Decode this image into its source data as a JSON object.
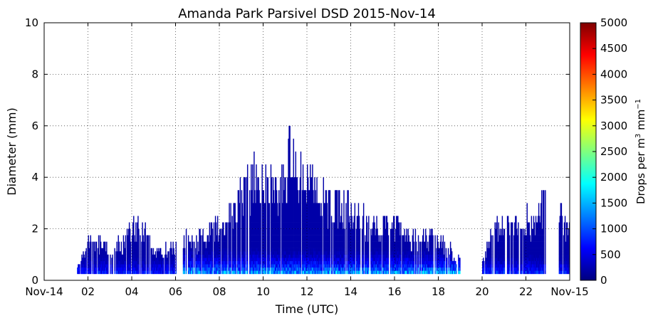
{
  "chart_data": {
    "type": "heatmap",
    "title": "Amanda Park Parsivel DSD 2015-Nov-14",
    "xlabel": "Time (UTC)",
    "ylabel": "Diameter (mm)",
    "x_tick_labels": [
      "Nov-14",
      "02",
      "04",
      "06",
      "08",
      "10",
      "12",
      "14",
      "16",
      "18",
      "20",
      "22",
      "Nov-15"
    ],
    "x_tick_hours": [
      0,
      2,
      4,
      6,
      8,
      10,
      12,
      14,
      16,
      18,
      20,
      22,
      24
    ],
    "xlim_hours": [
      0,
      24
    ],
    "ylim": [
      0,
      10
    ],
    "y_ticks": [
      0,
      2,
      4,
      6,
      8,
      10
    ],
    "grid": true,
    "colorbar": {
      "label": "Drops per m",
      "label_sup": "3",
      "label_unit": " mm",
      "label_unit_sup": "−1",
      "colormap": "jet",
      "range": [
        0,
        5000
      ],
      "ticks": [
        0,
        500,
        1000,
        1500,
        2000,
        2500,
        3000,
        3500,
        4000,
        4500,
        5000
      ]
    },
    "precip_segments": [
      {
        "start_hour": 1.5,
        "end_hour": 6.0,
        "max_diameter_mm": 2.5,
        "peak_count": 900
      },
      {
        "start_hour": 6.3,
        "end_hour": 19.0,
        "max_diameter_mm": 6.1,
        "peak_count": 1700
      },
      {
        "start_hour": 20.0,
        "end_hour": 24.0,
        "max_diameter_mm": 4.1,
        "peak_count": 1000
      }
    ],
    "notes_max_diameter_profile_mm": [
      [
        1.5,
        0.5
      ],
      [
        2.0,
        1.8
      ],
      [
        2.5,
        1.6
      ],
      [
        3.0,
        1.4
      ],
      [
        3.5,
        1.6
      ],
      [
        4.0,
        2.4
      ],
      [
        4.5,
        2.3
      ],
      [
        5.0,
        1.2
      ],
      [
        5.5,
        1.3
      ],
      [
        6.0,
        1.6
      ],
      [
        6.5,
        2.0
      ],
      [
        7.0,
        1.8
      ],
      [
        7.5,
        2.2
      ],
      [
        8.0,
        2.4
      ],
      [
        8.5,
        2.8
      ],
      [
        9.0,
        3.8
      ],
      [
        9.5,
        4.6
      ],
      [
        10.0,
        4.6
      ],
      [
        10.5,
        4.2
      ],
      [
        11.0,
        4.4
      ],
      [
        11.2,
        6.1
      ],
      [
        11.5,
        4.8
      ],
      [
        12.0,
        4.6
      ],
      [
        12.5,
        4.2
      ],
      [
        13.0,
        3.3
      ],
      [
        13.5,
        3.5
      ],
      [
        14.0,
        3.2
      ],
      [
        14.5,
        2.6
      ],
      [
        15.0,
        2.3
      ],
      [
        15.5,
        2.4
      ],
      [
        16.0,
        2.6
      ],
      [
        16.5,
        2.0
      ],
      [
        17.0,
        1.8
      ],
      [
        17.5,
        1.9
      ],
      [
        18.0,
        1.8
      ],
      [
        18.5,
        1.4
      ],
      [
        19.0,
        0.8
      ],
      [
        20.0,
        1.0
      ],
      [
        20.5,
        2.3
      ],
      [
        21.0,
        2.6
      ],
      [
        21.5,
        2.5
      ],
      [
        22.0,
        2.8
      ],
      [
        22.5,
        2.6
      ],
      [
        22.9,
        4.1
      ],
      [
        23.5,
        2.8
      ],
      [
        24.0,
        2.3
      ]
    ]
  }
}
